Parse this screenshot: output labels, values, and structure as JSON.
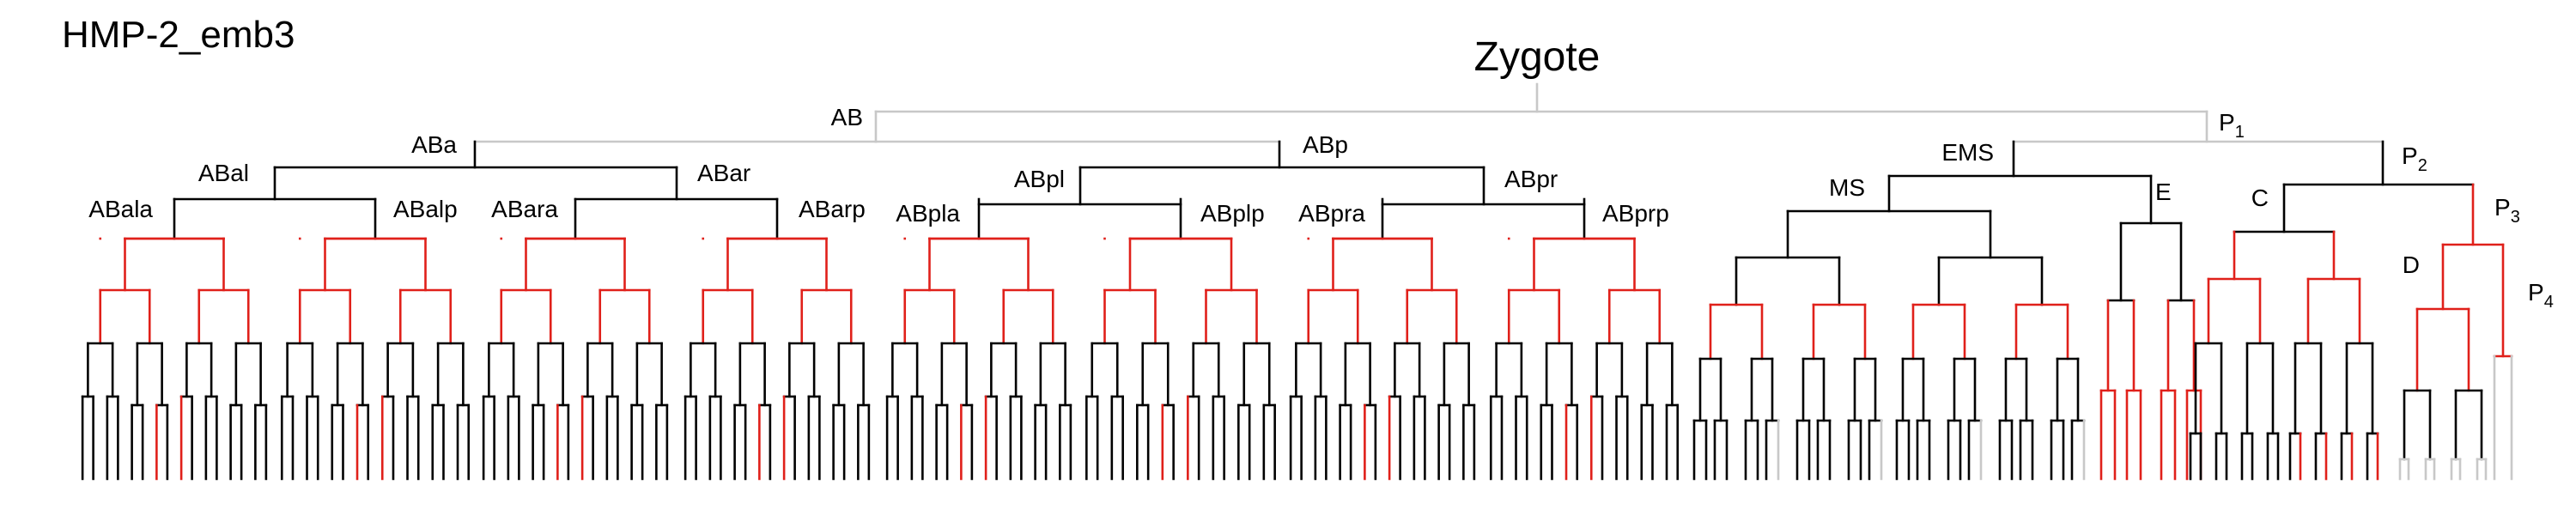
{
  "title": "HMP-2_emb3",
  "root_label": "Zygote",
  "colors": {
    "normal": "#000000",
    "highlight": "#e0201a",
    "faded": "#c8c8c8"
  },
  "labels": {
    "AB": "AB",
    "P1": "P",
    "P1_sub": "1",
    "ABa": "ABa",
    "ABp": "ABp",
    "ABal": "ABal",
    "ABar": "ABar",
    "ABpl": "ABpl",
    "ABpr": "ABpr",
    "ABala": "ABala",
    "ABalp": "ABalp",
    "ABara": "ABara",
    "ABarp": "ABarp",
    "ABpla": "ABpla",
    "ABplp": "ABplp",
    "ABpra": "ABpra",
    "ABprp": "ABprp",
    "EMS": "EMS",
    "MS": "MS",
    "E": "E",
    "P2": "P",
    "P2_sub": "2",
    "C": "C",
    "P3": "P",
    "P3_sub": "3",
    "D": "D",
    "P4": "P",
    "P4_sub": "4"
  }
}
